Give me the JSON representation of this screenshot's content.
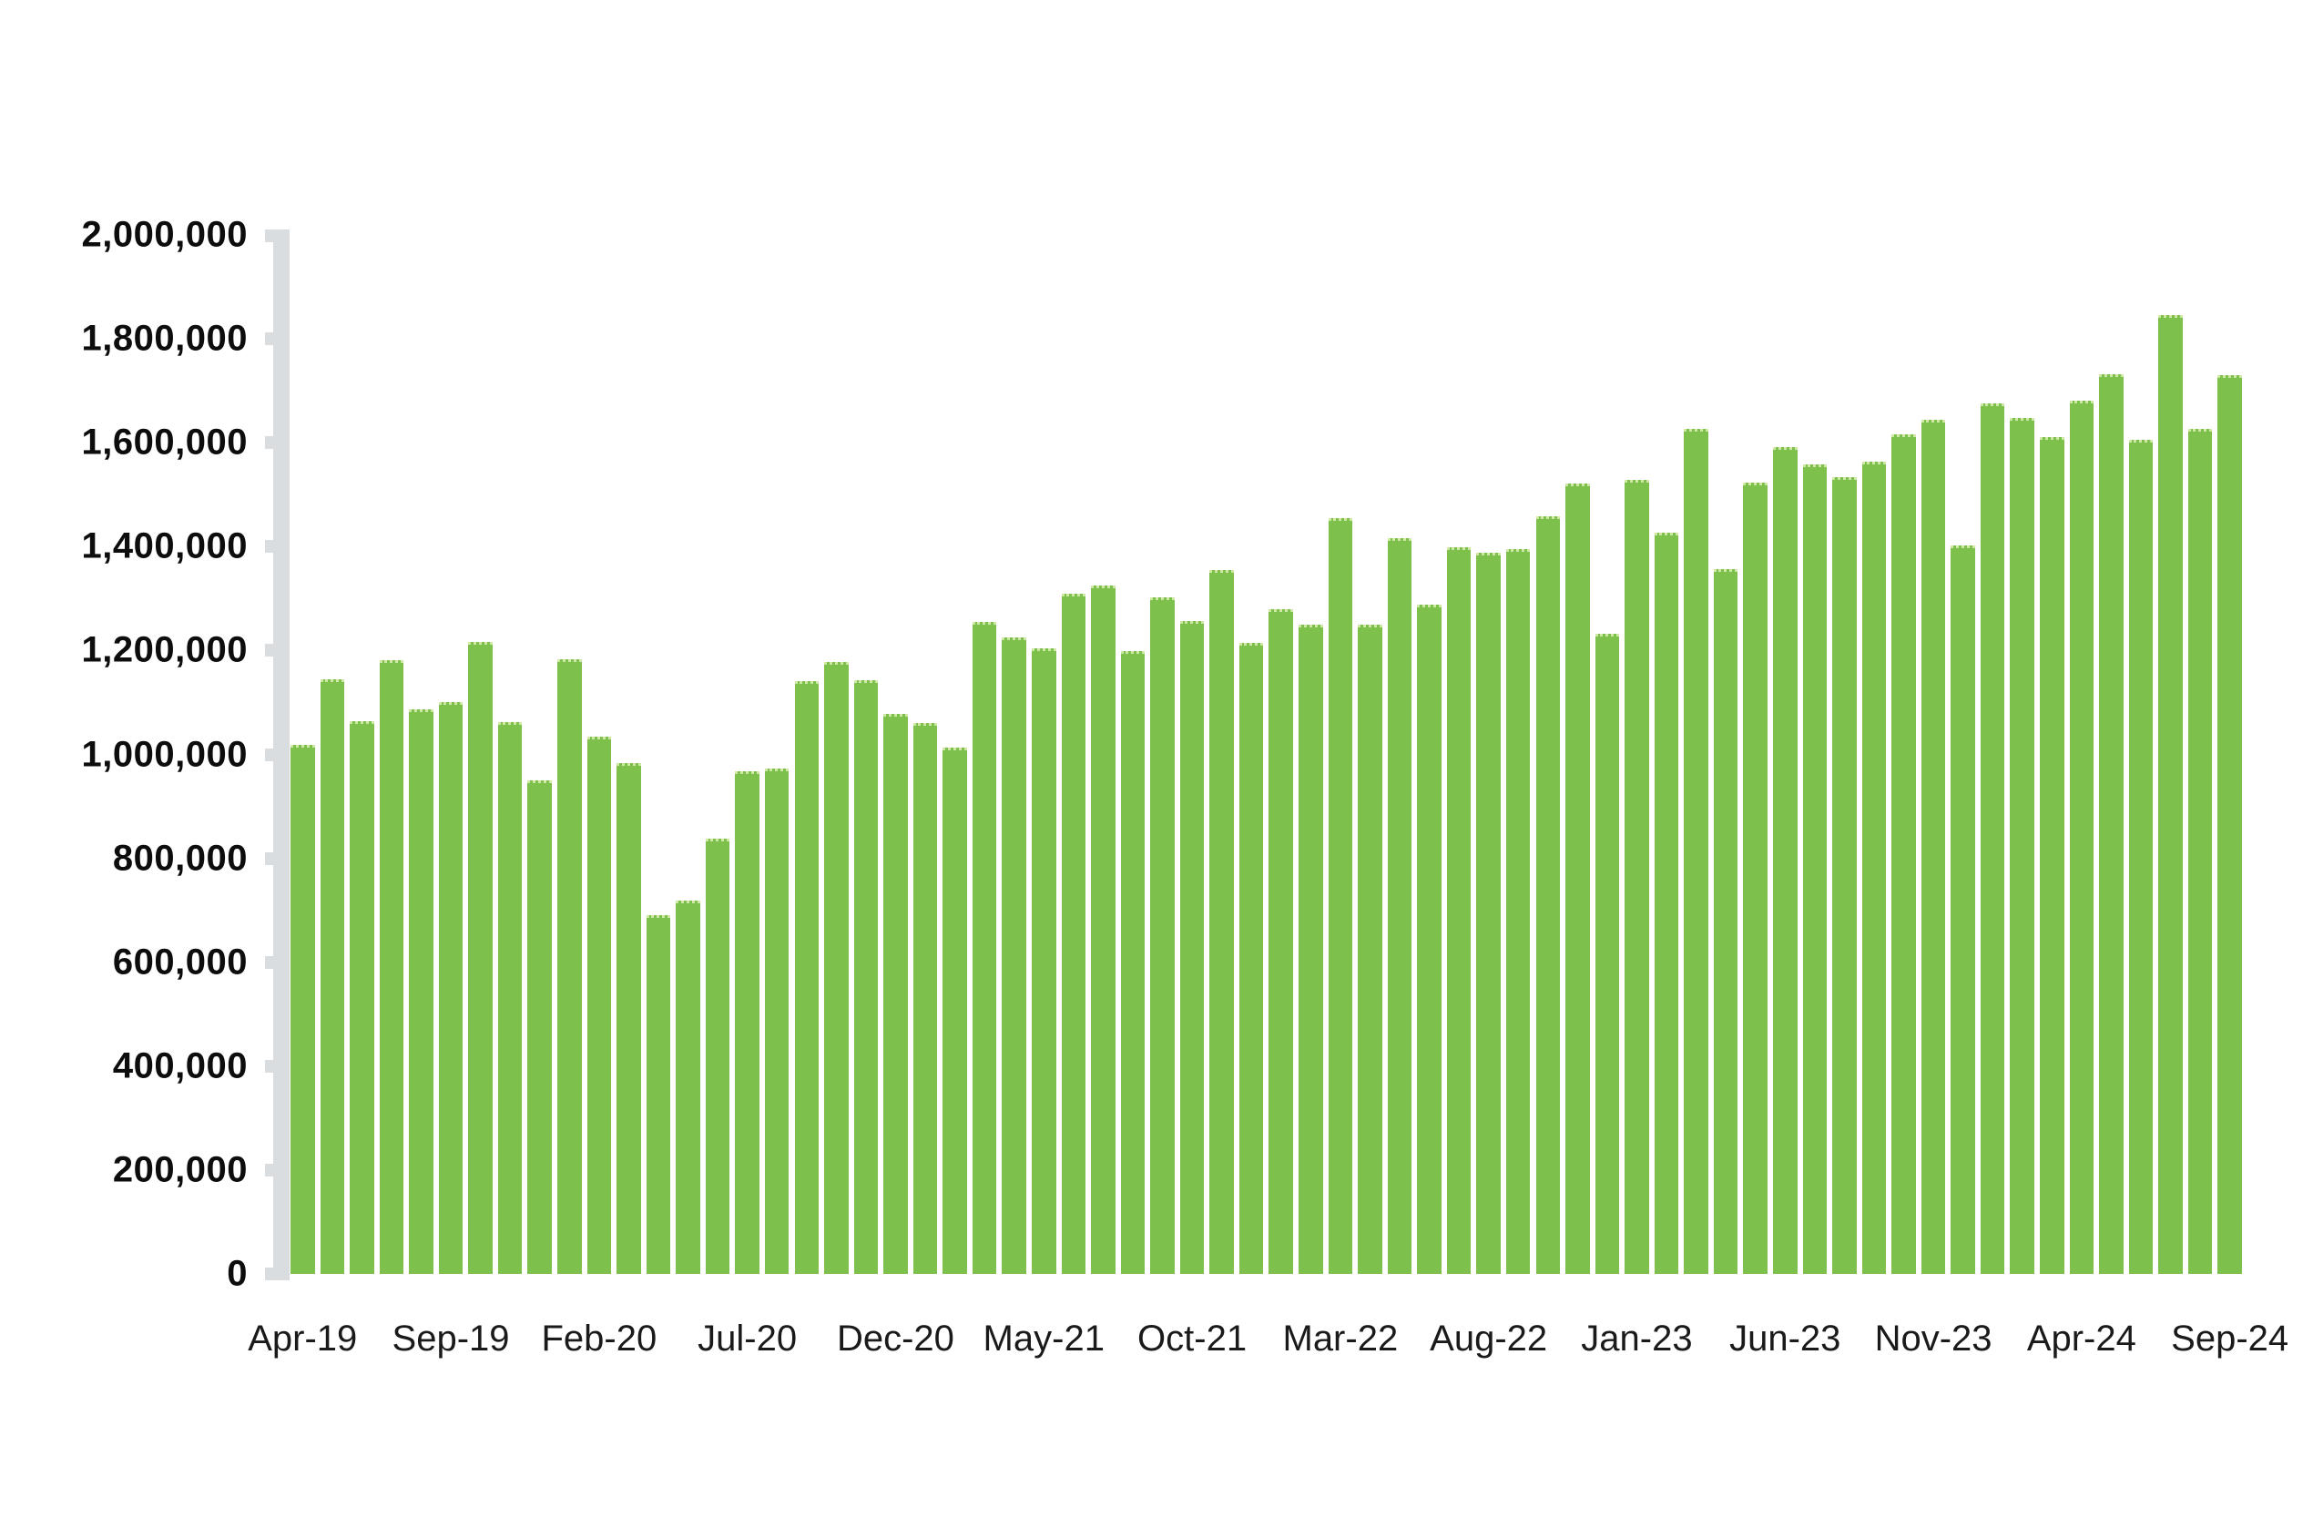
{
  "chart_data": {
    "type": "bar",
    "title": "",
    "xlabel": "",
    "ylabel": "",
    "grid": false,
    "legend": null,
    "ylim": [
      0,
      2000000
    ],
    "y_tick_labels": [
      "0",
      "200,000",
      "400,000",
      "600,000",
      "800,000",
      "1,000,000",
      "1,200,000",
      "1,400,000",
      "1,600,000",
      "1,800,000",
      "2,000,000"
    ],
    "x_tick_labels": [
      "Apr-19",
      "Sep-19",
      "Feb-20",
      "Jul-20",
      "Dec-20",
      "May-21",
      "Oct-21",
      "Mar-22",
      "Aug-22",
      "Jan-23",
      "Jun-23",
      "Nov-23",
      "Apr-24",
      "Sep-24"
    ],
    "x_tick_every": 5,
    "categories": [
      "Apr-19",
      "May-19",
      "Jun-19",
      "Jul-19",
      "Aug-19",
      "Sep-19",
      "Oct-19",
      "Nov-19",
      "Dec-19",
      "Jan-20",
      "Feb-20",
      "Mar-20",
      "Apr-20",
      "May-20",
      "Jun-20",
      "Jul-20",
      "Aug-20",
      "Sep-20",
      "Oct-20",
      "Nov-20",
      "Dec-20",
      "Jan-21",
      "Feb-21",
      "Mar-21",
      "Apr-21",
      "May-21",
      "Jun-21",
      "Jul-21",
      "Aug-21",
      "Sep-21",
      "Oct-21",
      "Nov-21",
      "Dec-21",
      "Jan-22",
      "Feb-22",
      "Mar-22",
      "Apr-22",
      "May-22",
      "Jun-22",
      "Jul-22",
      "Aug-22",
      "Sep-22",
      "Oct-22",
      "Nov-22",
      "Dec-22",
      "Jan-23",
      "Feb-23",
      "Mar-23",
      "Apr-23",
      "May-23",
      "Jun-23",
      "Jul-23",
      "Aug-23",
      "Sep-23",
      "Oct-23",
      "Nov-23",
      "Dec-23",
      "Jan-24",
      "Feb-24",
      "Mar-24",
      "Apr-24",
      "May-24",
      "Jun-24",
      "Jul-24",
      "Aug-24",
      "Sep-24"
    ],
    "values": [
      1018000,
      1145000,
      1064000,
      1181000,
      1087000,
      1100000,
      1216000,
      1062000,
      950000,
      1184000,
      1034000,
      983000,
      691000,
      719000,
      837000,
      967000,
      972000,
      1141000,
      1178000,
      1142000,
      1078000,
      1061000,
      1013000,
      1255000,
      1225000,
      1205000,
      1309000,
      1325000,
      1199000,
      1302000,
      1257000,
      1355000,
      1214000,
      1280000,
      1249000,
      1455000,
      1250000,
      1417000,
      1288000,
      1399000,
      1388000,
      1396000,
      1458000,
      1521000,
      1232000,
      1528000,
      1426000,
      1627000,
      1356000,
      1523000,
      1592000,
      1559000,
      1534000,
      1563000,
      1617000,
      1644000,
      1402000,
      1675000,
      1647000,
      1611000,
      1681000,
      1732000,
      1606000,
      1846000,
      1627000,
      1730000
    ],
    "colors": {
      "bar": "#7dc14c",
      "bar_top_dots": "#cfe8a5",
      "axis": "#d9dde0",
      "y_label_text": "#0d0d0d",
      "x_label_text": "#1a1a1a",
      "background": "#ffffff"
    }
  }
}
